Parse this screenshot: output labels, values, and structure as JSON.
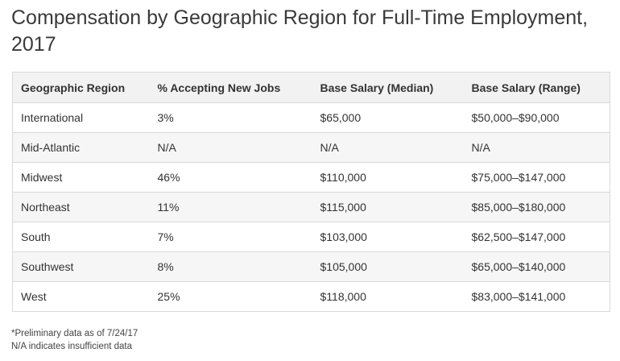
{
  "title": "Compensation by Geographic Region for Full-Time Employment, 2017",
  "table": {
    "headers": [
      "Geographic Region",
      "% Accepting New Jobs",
      "Base Salary (Median)",
      "Base Salary (Range)"
    ],
    "rows": [
      [
        "International",
        "3%",
        "$65,000",
        "$50,000–$90,000"
      ],
      [
        "Mid-Atlantic",
        "N/A",
        "N/A",
        "N/A"
      ],
      [
        "Midwest",
        "46%",
        "$110,000",
        "$75,000–$147,000"
      ],
      [
        "Northeast",
        "11%",
        "$115,000",
        "$85,000–$180,000"
      ],
      [
        "South",
        "7%",
        "$103,000",
        "$62,500–$147,000"
      ],
      [
        "Southwest",
        "8%",
        "$105,000",
        "$65,000–$140,000"
      ],
      [
        "West",
        "25%",
        "$118,000",
        "$83,000–$141,000"
      ]
    ]
  },
  "notes": {
    "line1": "*Preliminary data as of 7/24/17",
    "line2": "N/A indicates insufficient data"
  },
  "colors": {
    "header_bg": "#f2f2f2",
    "stripe_bg": "#f6f6f6",
    "border": "#d9d9d9",
    "text": "#333333"
  }
}
